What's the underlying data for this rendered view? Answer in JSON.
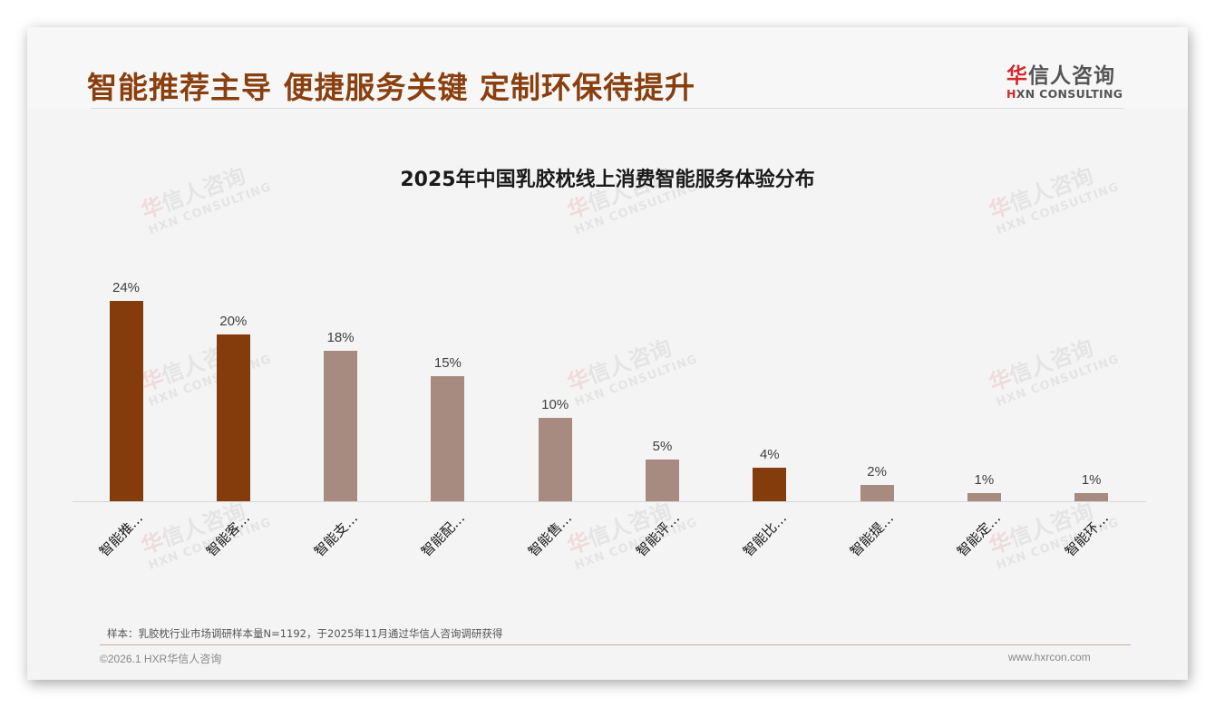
{
  "header": {
    "headline": "智能推荐主导 便捷服务关键 定制环保待提升",
    "logo": {
      "cn_accent": "华",
      "cn_rest": "信人咨询",
      "en_accent": "H",
      "en_rest": "XN CONSULTING"
    }
  },
  "watermark": {
    "cn_accent": "华",
    "cn_rest": "信人咨询",
    "en": "HXN CONSULTING"
  },
  "colors": {
    "highlight_bar": "#843c0c",
    "normal_bar": "#a88b80",
    "headline": "#8a3f0f",
    "logo_accent": "#d6282b"
  },
  "chart_data": {
    "type": "bar",
    "title": "2025年中国乳胶枕线上消费智能服务体验分布",
    "xlabel": "",
    "ylabel": "",
    "ylim": [
      0,
      26
    ],
    "grid": false,
    "legend": "none",
    "categories": [
      "智能推…",
      "智能客…",
      "智能支…",
      "智能配…",
      "智能售…",
      "智能评…",
      "智能比…",
      "智能提…",
      "智能定…",
      "智能环…"
    ],
    "values": [
      24,
      20,
      18,
      15,
      10,
      5,
      4,
      2,
      1,
      1
    ],
    "value_labels": [
      "24%",
      "20%",
      "18%",
      "15%",
      "10%",
      "5%",
      "4%",
      "2%",
      "1%",
      "1%"
    ],
    "highlighted": [
      true,
      true,
      false,
      false,
      false,
      false,
      true,
      false,
      false,
      false
    ]
  },
  "footer": {
    "note": "样本：乳胶枕行业市场调研样本量N=1192，于2025年11月通过华信人咨询调研获得",
    "copyright": "©2026.1 HXR华信人咨询",
    "website": "www.hxrcon.com"
  }
}
